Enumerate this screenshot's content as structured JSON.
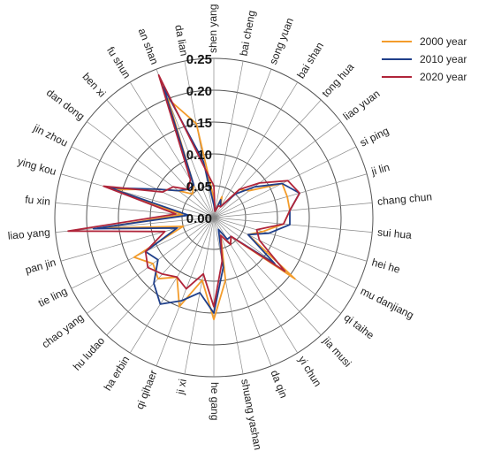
{
  "chart_data": {
    "type": "radar",
    "title": "",
    "categories": [
      "shen yang",
      "bai cheng",
      "song yuan",
      "bai shan",
      "tong hua",
      "liao yuan",
      "si ping",
      "ji lin",
      "chang chun",
      "sui hua",
      "hei he",
      "mu danjiang",
      "qi taihe",
      "jia musi",
      "yi chun",
      "da qin",
      "shuang yashan",
      "he gang",
      "ji xi",
      "qi qihaer",
      "ha erbin",
      "hu ludao",
      "chao yang",
      "tie ling",
      "pan jin",
      "liao yang",
      "fu xin",
      "ying kou",
      "jin zhou",
      "dan dong",
      "ben xi",
      "fu shun",
      "an shan",
      "da lian"
    ],
    "rlim": [
      0,
      0.25
    ],
    "ticks": [
      0.0,
      0.05,
      0.1,
      0.15,
      0.2,
      0.25
    ],
    "tick_labels": [
      "0.00",
      "0.05",
      "0.10",
      "0.15",
      "0.20",
      "0.25"
    ],
    "grid": true,
    "legend_position": "top-right",
    "series": [
      {
        "name": "2000 year",
        "color": "#F39C2B",
        "values": [
          0.03,
          0.01,
          0.035,
          0.02,
          0.06,
          0.07,
          0.12,
          0.12,
          0.12,
          0.11,
          0.08,
          0.06,
          0.16,
          0.04,
          0.05,
          0.03,
          0.1,
          0.16,
          0.1,
          0.15,
          0.11,
          0.13,
          0.12,
          0.14,
          0.05,
          0.18,
          0.05,
          0.16,
          0.1,
          0.07,
          0.05,
          0.06,
          0.2,
          0.15
        ]
      },
      {
        "name": "2010 year",
        "color": "#1F3F8A",
        "values": [
          0.02,
          0.01,
          0.03,
          0.02,
          0.05,
          0.08,
          0.12,
          0.14,
          0.12,
          0.12,
          0.09,
          0.06,
          0.12,
          0.04,
          0.04,
          0.02,
          0.08,
          0.15,
          0.12,
          0.14,
          0.16,
          0.14,
          0.11,
          0.12,
          0.06,
          0.19,
          0.04,
          0.17,
          0.1,
          0.07,
          0.06,
          0.06,
          0.22,
          0.09
        ]
      },
      {
        "name": "2020 year",
        "color": "#B0253A",
        "values": [
          0.05,
          0.01,
          0.02,
          0.02,
          0.06,
          0.09,
          0.13,
          0.14,
          0.12,
          0.11,
          0.07,
          0.08,
          0.14,
          0.04,
          0.05,
          0.03,
          0.07,
          0.14,
          0.09,
          0.12,
          0.11,
          0.12,
          0.13,
          0.12,
          0.08,
          0.23,
          0.06,
          0.18,
          0.09,
          0.08,
          0.06,
          0.07,
          0.24,
          0.08
        ]
      }
    ]
  }
}
